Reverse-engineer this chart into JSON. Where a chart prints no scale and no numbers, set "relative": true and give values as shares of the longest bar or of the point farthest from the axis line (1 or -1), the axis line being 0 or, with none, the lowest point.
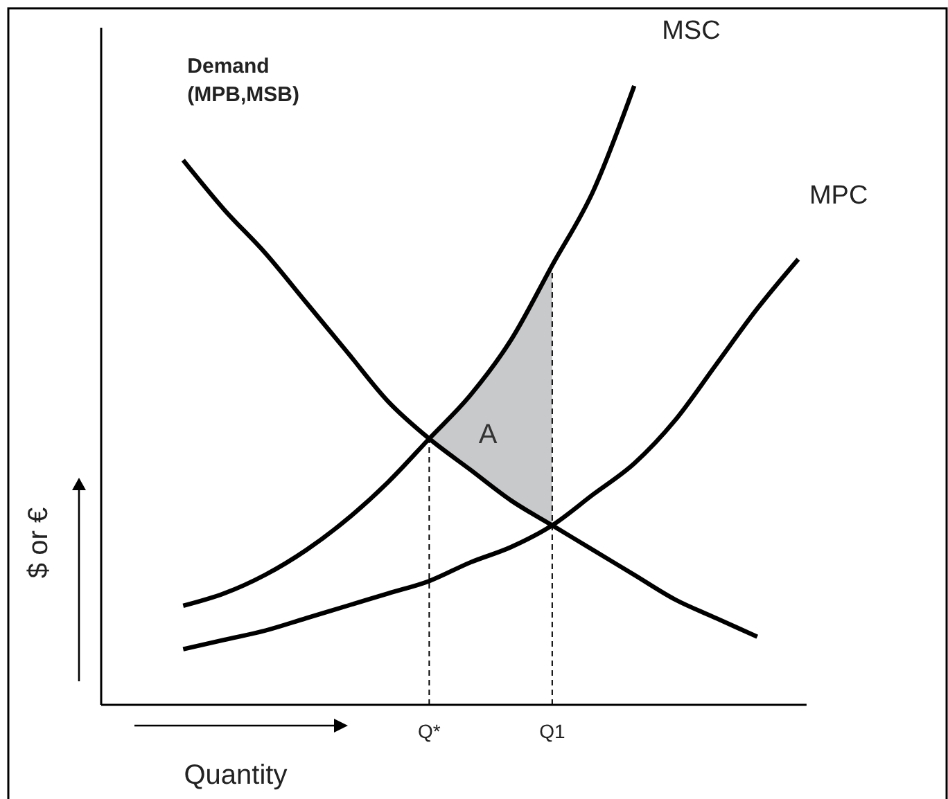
{
  "chart_data": {
    "type": "line",
    "relative": true,
    "xlabel": "Quantity",
    "ylabel": "$ or €",
    "categories": [
      null,
      null,
      null,
      null,
      null,
      null,
      null,
      null,
      "Q*",
      null,
      null,
      "Q1",
      null,
      null,
      null,
      null,
      null,
      null
    ],
    "tick_labels": "x",
    "line_style": "solid",
    "series": [
      {
        "name": "Demand (MPB,MSB)",
        "color": "#000000",
        "values": [
          null,
          null,
          0.88,
          0.8,
          0.73,
          0.65,
          0.57,
          0.49,
          0.43,
          0.38,
          0.33,
          0.29,
          0.25,
          0.21,
          0.17,
          0.14,
          0.11,
          null
        ]
      },
      {
        "name": "MSC",
        "color": "#000000",
        "values": [
          null,
          null,
          0.16,
          0.18,
          0.21,
          0.25,
          0.3,
          0.36,
          0.43,
          0.5,
          0.59,
          0.71,
          0.83,
          1,
          null,
          null,
          null,
          null
        ]
      },
      {
        "name": "MPC",
        "color": "#000000",
        "values": [
          null,
          null,
          0.09,
          0.105,
          0.12,
          0.14,
          0.16,
          0.18,
          0.2,
          0.23,
          0.255,
          0.29,
          0.34,
          0.39,
          0.46,
          0.55,
          0.64,
          0.72
        ]
      }
    ],
    "annotations": [
      "A"
    ],
    "ref_lines": [
      {
        "axis": "x",
        "value": "Q*",
        "line_style": "dashed",
        "color": "#000000"
      },
      {
        "axis": "x",
        "value": "Q1",
        "line_style": "dashed",
        "color": "#000000"
      }
    ]
  }
}
